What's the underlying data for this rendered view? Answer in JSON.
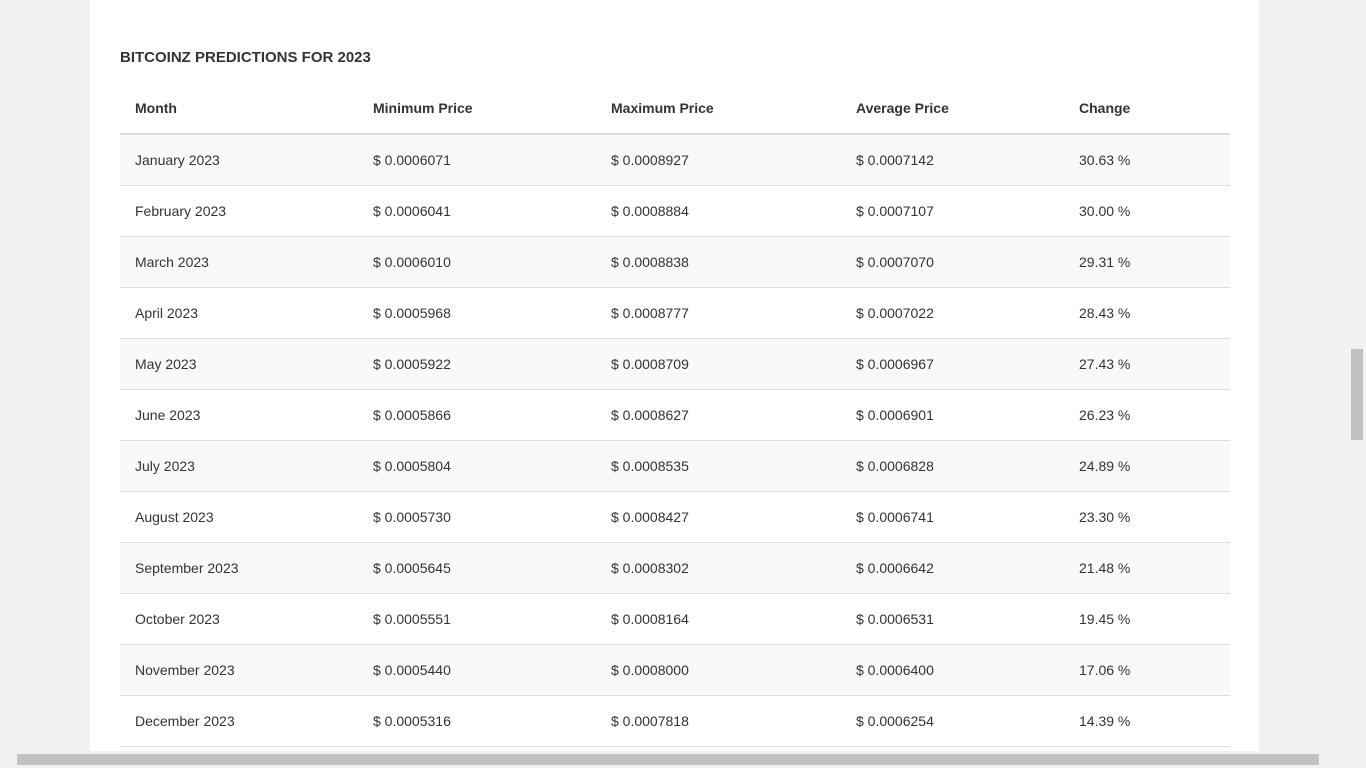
{
  "title": "BITCOINZ PREDICTIONS FOR 2023",
  "table": {
    "header": [
      "Month",
      "Minimum Price",
      "Maximum Price",
      "Average Price",
      "Change"
    ],
    "rows": [
      [
        "January 2023",
        "$ 0.0006071",
        "$ 0.0008927",
        "$ 0.0007142",
        "30.63 %"
      ],
      [
        "February 2023",
        "$ 0.0006041",
        "$ 0.0008884",
        "$ 0.0007107",
        "30.00 %"
      ],
      [
        "March 2023",
        "$ 0.0006010",
        "$ 0.0008838",
        "$ 0.0007070",
        "29.31 %"
      ],
      [
        "April 2023",
        "$ 0.0005968",
        "$ 0.0008777",
        "$ 0.0007022",
        "28.43 %"
      ],
      [
        "May 2023",
        "$ 0.0005922",
        "$ 0.0008709",
        "$ 0.0006967",
        "27.43 %"
      ],
      [
        "June 2023",
        "$ 0.0005866",
        "$ 0.0008627",
        "$ 0.0006901",
        "26.23 %"
      ],
      [
        "July 2023",
        "$ 0.0005804",
        "$ 0.0008535",
        "$ 0.0006828",
        "24.89 %"
      ],
      [
        "August 2023",
        "$ 0.0005730",
        "$ 0.0008427",
        "$ 0.0006741",
        "23.30 %"
      ],
      [
        "September 2023",
        "$ 0.0005645",
        "$ 0.0008302",
        "$ 0.0006642",
        "21.48 %"
      ],
      [
        "October 2023",
        "$ 0.0005551",
        "$ 0.0008164",
        "$ 0.0006531",
        "19.45 %"
      ],
      [
        "November 2023",
        "$ 0.0005440",
        "$ 0.0008000",
        "$ 0.0006400",
        "17.06 %"
      ],
      [
        "December 2023",
        "$ 0.0005316",
        "$ 0.0007818",
        "$ 0.0006254",
        "14.39 %"
      ]
    ]
  }
}
